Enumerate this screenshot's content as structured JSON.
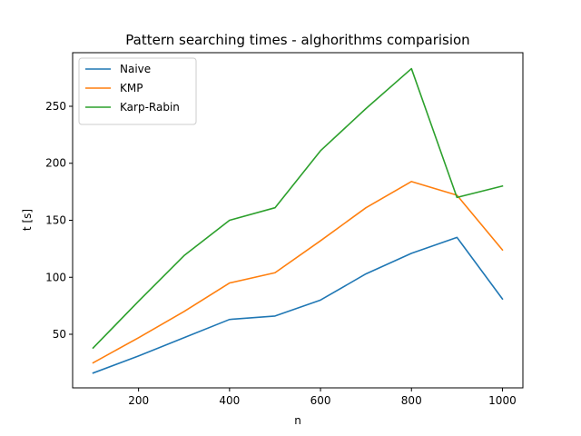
{
  "chart_data": {
    "type": "line",
    "title": "Pattern searching times - alghorithms comparision",
    "xlabel": "n",
    "ylabel": "t [s]",
    "x": [
      100,
      200,
      300,
      400,
      500,
      600,
      700,
      800,
      900,
      1000
    ],
    "xlim": [
      55,
      1045
    ],
    "ylim": [
      3,
      297
    ],
    "xticks": [
      200,
      400,
      600,
      800,
      1000
    ],
    "yticks": [
      50,
      100,
      150,
      200,
      250
    ],
    "grid": false,
    "legend_position": "top-left",
    "series": [
      {
        "name": "Naive",
        "color": "#1f77b4",
        "values": [
          16,
          31,
          47,
          63,
          66,
          80,
          103,
          121,
          135,
          81
        ]
      },
      {
        "name": "KMP",
        "color": "#ff7f0e",
        "values": [
          25,
          47,
          70,
          95,
          104,
          132,
          161,
          184,
          172,
          124
        ]
      },
      {
        "name": "Karp-Rabin",
        "color": "#2ca02c",
        "values": [
          38,
          79,
          119,
          150,
          161,
          211,
          248,
          283,
          170,
          180
        ]
      }
    ]
  }
}
